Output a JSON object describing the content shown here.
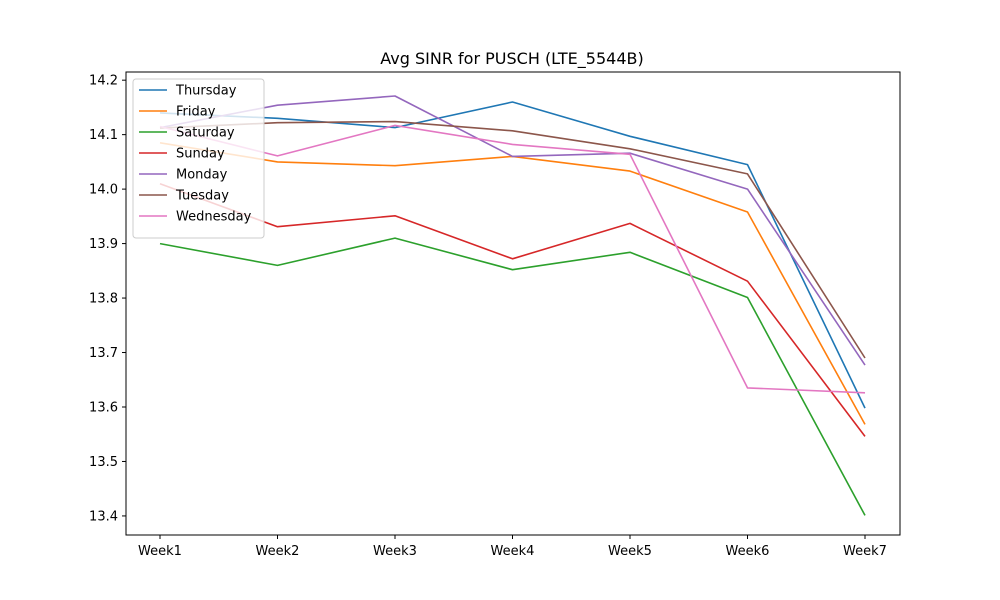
{
  "chart_data": {
    "type": "line",
    "title": "Avg SINR for PUSCH (LTE_5544B)",
    "xlabel": "",
    "ylabel": "",
    "categories": [
      "Week1",
      "Week2",
      "Week3",
      "Week4",
      "Week5",
      "Week6",
      "Week7"
    ],
    "ylim": [
      13.365,
      14.215
    ],
    "yticks": [
      "13.4",
      "13.5",
      "13.6",
      "13.7",
      "13.8",
      "13.9",
      "14.0",
      "14.1",
      "14.2"
    ],
    "grid": false,
    "legend_position": "upper-left",
    "series": [
      {
        "name": "Thursday",
        "color": "#1f77b4",
        "values": [
          14.14,
          14.13,
          14.113,
          14.16,
          14.097,
          14.045,
          13.598
        ]
      },
      {
        "name": "Friday",
        "color": "#ff7f0e",
        "values": [
          14.085,
          14.05,
          14.043,
          14.06,
          14.033,
          13.958,
          13.568
        ]
      },
      {
        "name": "Saturday",
        "color": "#2ca02c",
        "values": [
          13.9,
          13.86,
          13.91,
          13.852,
          13.884,
          13.801,
          13.401
        ]
      },
      {
        "name": "Sunday",
        "color": "#d62728",
        "values": [
          14.01,
          13.931,
          13.951,
          13.872,
          13.937,
          13.831,
          13.546
        ]
      },
      {
        "name": "Monday",
        "color": "#9467bd",
        "values": [
          14.113,
          14.154,
          14.171,
          14.06,
          14.066,
          14.0,
          13.677
        ]
      },
      {
        "name": "Tuesday",
        "color": "#8c564b",
        "values": [
          14.112,
          14.122,
          14.124,
          14.107,
          14.074,
          14.028,
          13.69
        ]
      },
      {
        "name": "Wednesday",
        "color": "#e377c2",
        "values": [
          14.115,
          14.061,
          14.117,
          14.082,
          14.064,
          13.635,
          13.626
        ]
      }
    ]
  }
}
